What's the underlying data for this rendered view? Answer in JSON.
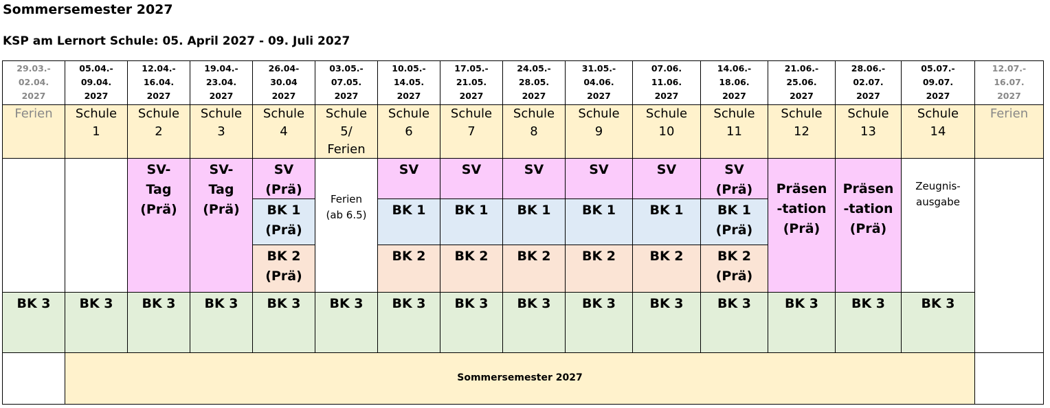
{
  "header": {
    "title": "Sommersemester 2027",
    "subtitle": "KSP am Lernort Schule: 05. April 2027 - 09. Juli 2027"
  },
  "table": {
    "weeks": [
      "29.03.-\n02.04.\n2027",
      "05.04.-\n09.04.\n2027",
      "12.04.-\n16.04.\n2027",
      "19.04.-\n23.04.\n2027",
      "26.04-\n30.04\n2027",
      "03.05.-\n07.05.\n2027",
      "10.05.-\n14.05.\n2027",
      "17.05.-\n21.05.\n2027",
      "24.05.-\n28.05.\n2027",
      "31.05.-\n04.06.\n2027",
      "07.06.\n11.06.\n2027",
      "14.06.-\n18.06.\n2027",
      "21.06.-\n25.06.\n2027",
      "28.06.-\n02.07.\n2027",
      "05.07.-\n09.07.\n2027",
      "12.07.-\n16.07.\n2027"
    ],
    "phases": [
      "Ferien",
      "Schule\n1",
      "Schule\n2",
      "Schule\n3",
      "Schule\n4",
      "Schule\n5/\nFerien",
      "Schule\n6",
      "Schule\n7",
      "Schule\n8",
      "Schule\n9",
      "Schule\n10",
      "Schule\n11",
      "Schule\n12",
      "Schule\n13",
      "Schule\n14",
      "Ferien"
    ],
    "activities": [
      [],
      [],
      [
        "SV-\nTag\n(Prä)"
      ],
      [
        "SV-\nTag\n(Prä)"
      ],
      [
        "SV\n(Prä)",
        "BK 1\n(Prä)",
        "BK 2\n(Prä)"
      ],
      [
        "Ferien\n(ab 6.5)"
      ],
      [
        "SV",
        "BK 1",
        "BK 2"
      ],
      [
        "SV",
        "BK 1",
        "BK 2"
      ],
      [
        "SV",
        "BK 1",
        "BK 2"
      ],
      [
        "SV",
        "BK 1",
        "BK 2"
      ],
      [
        "SV",
        "BK 1",
        "BK 2"
      ],
      [
        "SV\n(Prä)",
        "BK 1\n(Prä)",
        "BK 2\n(Prä)"
      ],
      [
        "Präsen\n-tation\n(Prä)"
      ],
      [
        "Präsen\n-tation\n(Prä)"
      ],
      [
        "Zeugnis-\nausgabe"
      ],
      []
    ],
    "bk3": [
      "BK 3",
      "BK 3",
      "BK 3",
      "BK 3",
      "BK 3",
      "BK 3",
      "BK 3",
      "BK 3",
      "BK 3",
      "BK 3",
      "BK 3",
      "BK 3",
      "BK 3",
      "BK 3",
      "BK 3"
    ],
    "semester": "Sommersemester 2027"
  }
}
